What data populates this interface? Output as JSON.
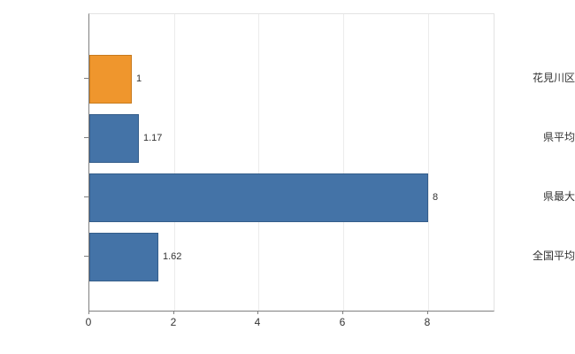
{
  "chart_data": {
    "type": "bar",
    "orientation": "horizontal",
    "title": "",
    "xlabel": "",
    "ylabel": "",
    "categories": [
      "花見川区",
      "県平均",
      "県最大",
      "全国平均"
    ],
    "values": [
      1,
      1.17,
      8,
      1.62
    ],
    "value_labels": [
      "1",
      "1.17",
      "8",
      "1.62"
    ],
    "bar_colors": [
      "#ef962d",
      "#4473a7",
      "#4473a7",
      "#4473a7"
    ],
    "bar_border_colors": [
      "#c77a1d",
      "#345d8a",
      "#345d8a",
      "#345d8a"
    ],
    "xlim": [
      0,
      9.55
    ],
    "x_ticks": [
      0,
      2,
      4,
      6,
      8
    ],
    "x_tick_labels": [
      "0",
      "2",
      "4",
      "6",
      "8"
    ],
    "grid": true,
    "legend": "none",
    "background_color": "#ffffff",
    "axis_color": "#7f7f7f",
    "gridline_color": "#ebebeb",
    "label_color": "#333333"
  }
}
